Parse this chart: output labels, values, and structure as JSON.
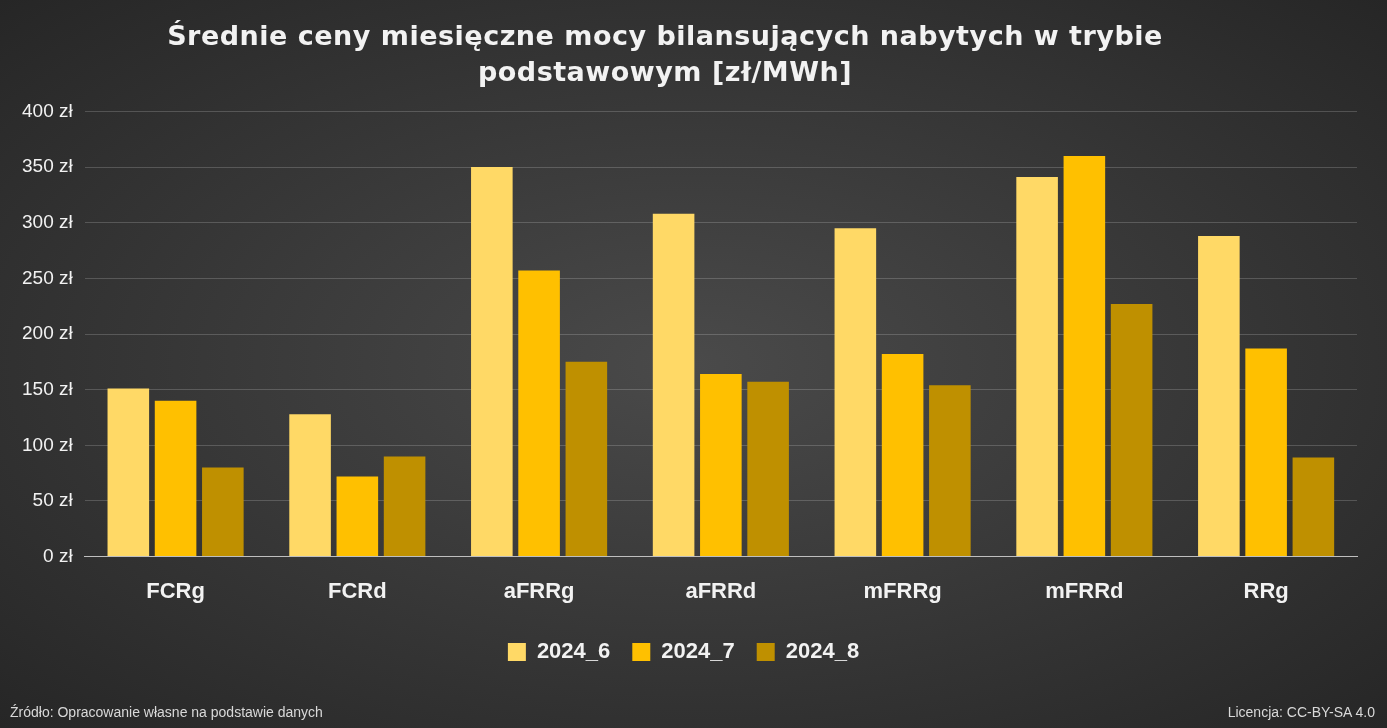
{
  "chart_data": {
    "type": "bar",
    "title": "Średnie ceny miesięczne mocy bilansujących nabytych w trybie podstawowym [zł/MWh]",
    "categories": [
      "FCRg",
      "FCRd",
      "aFRRg",
      "aFRRd",
      "mFRRg",
      "mFRRd",
      "RRg"
    ],
    "series": [
      {
        "name": "2024_6",
        "color": "#ffd966",
        "values": [
          151,
          128,
          350,
          308,
          295,
          341,
          288
        ]
      },
      {
        "name": "2024_7",
        "color": "#ffc000",
        "values": [
          140,
          72,
          257,
          164,
          182,
          360,
          187
        ]
      },
      {
        "name": "2024_8",
        "color": "#bf9000",
        "values": [
          80,
          90,
          175,
          157,
          154,
          227,
          89
        ]
      }
    ],
    "ylim": [
      0,
      400
    ],
    "yticks": [
      {
        "value": 0,
        "label": "0 zł"
      },
      {
        "value": 50,
        "label": "50 zł"
      },
      {
        "value": 100,
        "label": "100 zł"
      },
      {
        "value": 150,
        "label": "150 zł"
      },
      {
        "value": 200,
        "label": "200 zł"
      },
      {
        "value": 250,
        "label": "250 zł"
      },
      {
        "value": 300,
        "label": "300 zł"
      },
      {
        "value": 350,
        "label": "350 zł"
      },
      {
        "value": 400,
        "label": "400 zł"
      }
    ],
    "grid": "y",
    "legend": "bottom",
    "annotations": [
      "Źródło: Opracowanie własne na podstawie danych",
      "Licencja: CC-BY-SA 4.0"
    ]
  }
}
